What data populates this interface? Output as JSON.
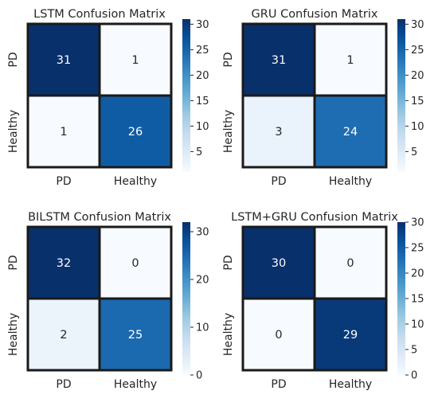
{
  "chart_data": [
    {
      "type": "heatmap",
      "title": "LSTM Confusion Matrix",
      "rows": [
        "PD",
        "Healthy"
      ],
      "cols": [
        "PD",
        "Healthy"
      ],
      "values": [
        [
          31,
          1
        ],
        [
          1,
          26
        ]
      ],
      "colorbar": {
        "min": 1,
        "max": 31,
        "ticks": [
          5,
          10,
          15,
          20,
          25,
          30
        ]
      }
    },
    {
      "type": "heatmap",
      "title": "GRU Confusion Matrix",
      "rows": [
        "PD",
        "Healthy"
      ],
      "cols": [
        "PD",
        "Healthy"
      ],
      "values": [
        [
          31,
          1
        ],
        [
          3,
          24
        ]
      ],
      "colorbar": {
        "min": 1,
        "max": 31,
        "ticks": [
          5,
          10,
          15,
          20,
          25,
          30
        ]
      }
    },
    {
      "type": "heatmap",
      "title": "BILSTM Confusion Matrix",
      "rows": [
        "PD",
        "Healthy"
      ],
      "cols": [
        "PD",
        "Healthy"
      ],
      "values": [
        [
          32,
          0
        ],
        [
          2,
          25
        ]
      ],
      "colorbar": {
        "min": 0,
        "max": 32,
        "ticks": [
          0,
          10,
          20,
          30
        ]
      }
    },
    {
      "type": "heatmap",
      "title": "LSTM+GRU Confusion Matrix",
      "rows": [
        "PD",
        "Healthy"
      ],
      "cols": [
        "PD",
        "Healthy"
      ],
      "values": [
        [
          30,
          0
        ],
        [
          0,
          29
        ]
      ],
      "colorbar": {
        "min": 0,
        "max": 30,
        "ticks": [
          0,
          5,
          10,
          15,
          20,
          25,
          30
        ]
      }
    }
  ],
  "colors": {
    "colormap": "Blues",
    "stops": [
      "#f7fbff",
      "#deebf7",
      "#c6dbef",
      "#9ecae1",
      "#6baed6",
      "#4292c6",
      "#2171b5",
      "#08519c",
      "#08306b"
    ],
    "cell_border": "#1a1a1a",
    "text_dark": "#262626",
    "text_light": "#ffffff"
  }
}
